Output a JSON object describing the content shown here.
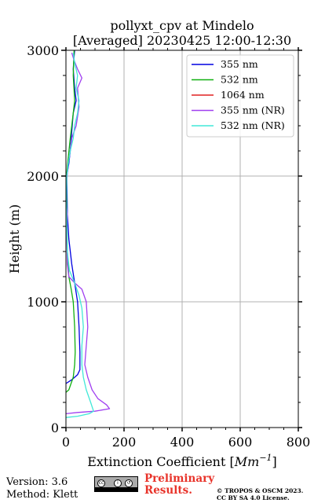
{
  "chart_data": {
    "type": "line",
    "title_line1": "pollyxt_cpv at Mindelo",
    "title_line2": "[Averaged] 20230425 12:00-12:30",
    "xlabel": "Extinction Coefficient [",
    "xlabel_unit": "Mm",
    "xlabel_sup": "−1",
    "xlabel_end": "]",
    "ylabel": "Height (m)",
    "xlim": [
      0,
      800
    ],
    "ylim": [
      0,
      3000
    ],
    "x_ticks": [
      "0",
      "200",
      "400",
      "600",
      "800"
    ],
    "y_ticks": [
      "0",
      "1000",
      "2000",
      "3000"
    ],
    "x_tick_values": [
      0,
      200,
      400,
      600,
      800
    ],
    "y_tick_values": [
      0,
      1000,
      2000,
      3000
    ],
    "grid": true,
    "legend_position": "top-right",
    "series": [
      {
        "name": "355 nm",
        "color": "#0000e0",
        "points": [
          [
            0,
            350
          ],
          [
            20,
            380
          ],
          [
            40,
            420
          ],
          [
            48,
            460
          ],
          [
            48,
            600
          ],
          [
            45,
            800
          ],
          [
            40,
            1000
          ],
          [
            30,
            1150
          ],
          [
            20,
            1300
          ],
          [
            10,
            1500
          ],
          [
            5,
            1700
          ],
          [
            3,
            2000
          ],
          [
            10,
            2100
          ],
          [
            15,
            2200
          ],
          [
            18,
            2300
          ],
          [
            25,
            2500
          ],
          [
            35,
            2600
          ],
          [
            30,
            2700
          ],
          [
            25,
            2850
          ],
          [
            28,
            2950
          ],
          [
            30,
            3000
          ]
        ]
      },
      {
        "name": "532 nm",
        "color": "#10b010",
        "points": [
          [
            0,
            280
          ],
          [
            10,
            300
          ],
          [
            25,
            400
          ],
          [
            30,
            500
          ],
          [
            32,
            600
          ],
          [
            30,
            800
          ],
          [
            25,
            1000
          ],
          [
            18,
            1100
          ],
          [
            10,
            1200
          ],
          [
            5,
            1400
          ],
          [
            3,
            1700
          ],
          [
            2,
            2000
          ],
          [
            8,
            2150
          ],
          [
            15,
            2300
          ],
          [
            25,
            2500
          ],
          [
            30,
            2600
          ],
          [
            25,
            2800
          ],
          [
            28,
            3000
          ]
        ]
      },
      {
        "name": "1064 nm",
        "color": "#e02020",
        "points": []
      },
      {
        "name": "355 nm (NR)",
        "color": "#a040f0",
        "points": [
          [
            0,
            110
          ],
          [
            40,
            120
          ],
          [
            100,
            130
          ],
          [
            150,
            150
          ],
          [
            140,
            180
          ],
          [
            110,
            230
          ],
          [
            90,
            300
          ],
          [
            75,
            400
          ],
          [
            65,
            500
          ],
          [
            70,
            650
          ],
          [
            75,
            800
          ],
          [
            70,
            1000
          ],
          [
            55,
            1100
          ],
          [
            30,
            1150
          ],
          [
            10,
            1200
          ],
          [
            5,
            1300
          ],
          [
            3,
            1500
          ],
          [
            5,
            1700
          ],
          [
            0,
            1800
          ],
          [
            4,
            2000
          ],
          [
            8,
            2100
          ],
          [
            15,
            2200
          ],
          [
            20,
            2300
          ],
          [
            35,
            2400
          ],
          [
            45,
            2550
          ],
          [
            40,
            2700
          ],
          [
            55,
            2780
          ],
          [
            40,
            2850
          ],
          [
            28,
            2920
          ],
          [
            20,
            2980
          ]
        ]
      },
      {
        "name": "532 nm (NR)",
        "color": "#40e8d8",
        "points": [
          [
            0,
            80
          ],
          [
            40,
            90
          ],
          [
            80,
            110
          ],
          [
            95,
            130
          ],
          [
            85,
            200
          ],
          [
            70,
            300
          ],
          [
            60,
            400
          ],
          [
            55,
            500
          ],
          [
            55,
            650
          ],
          [
            60,
            800
          ],
          [
            55,
            950
          ],
          [
            45,
            1050
          ],
          [
            30,
            1150
          ],
          [
            12,
            1250
          ],
          [
            5,
            1400
          ],
          [
            3,
            1600
          ],
          [
            2,
            1800
          ],
          [
            3,
            2000
          ],
          [
            8,
            2100
          ],
          [
            15,
            2200
          ],
          [
            25,
            2300
          ],
          [
            30,
            2400
          ],
          [
            40,
            2500
          ],
          [
            45,
            2600
          ],
          [
            35,
            2700
          ],
          [
            40,
            2800
          ],
          [
            30,
            2900
          ],
          [
            25,
            2980
          ]
        ]
      }
    ]
  },
  "footer": {
    "version": "Version: 3.6",
    "method": "Method: Klett",
    "preliminary_line1": "Preliminary",
    "preliminary_line2": "Results.",
    "copyright_line1": "© TROPOS & OSCM 2023.",
    "copyright_line2": "CC BY SA 4.0 License.",
    "license_badge_text": "BY  SA"
  }
}
